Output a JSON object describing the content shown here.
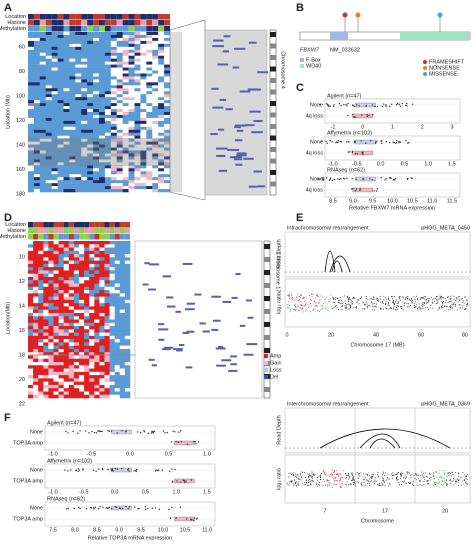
{
  "panels": {
    "a": {
      "letter": "A",
      "header_rows": [
        "Location",
        "Histone",
        "Methylation"
      ],
      "y_label": "Location (Mb)",
      "y_ticks": [
        "60",
        "80",
        "100",
        "120",
        "140",
        "160",
        "180"
      ],
      "chromosome": "Chromosome 4"
    },
    "b": {
      "letter": "B",
      "gene": "FBXW7",
      "transcript": "NM_033632",
      "domains": [
        "F-Box",
        "WD40"
      ],
      "mutation_types": [
        "FRAMESHIFT",
        "NONSENSE",
        "MISSENSE"
      ]
    },
    "c": {
      "letter": "C",
      "groups": [
        {
          "platform": "Agilent (n=47)",
          "rows": [
            "None",
            "4q loss"
          ],
          "ticks": [
            "-1",
            "0",
            "1",
            "2",
            "3"
          ]
        },
        {
          "platform": "Affymetrix (n=102)",
          "rows": [
            "None",
            "4q loss"
          ],
          "ticks": [
            "-1.0",
            "-0.5",
            "0.0",
            "0.5",
            "1.0",
            "1.5"
          ]
        },
        {
          "platform": "RNAseq (n=62)",
          "rows": [
            "None",
            "4q loss"
          ],
          "ticks": [
            "8.5",
            "9.0",
            "9.5",
            "10.0",
            "10.5",
            "11.0",
            "11.5"
          ]
        }
      ],
      "x_label": "Relative FBXW7 mRNA expression"
    },
    "d": {
      "letter": "D",
      "header_rows": [
        "Location",
        "Histone",
        "Methylation"
      ],
      "y_label": "Location(Mb)",
      "y_ticks": [
        "10",
        "12",
        "14",
        "16",
        "18",
        "20",
        "22"
      ],
      "chromosome": "Chromosome 17",
      "legend": [
        "Amp",
        "Gain",
        "Loss",
        "Del"
      ]
    },
    "e": {
      "letter": "E",
      "top": {
        "title": "Intrachromosomal rearrangement",
        "sample": "pHGG_META_0450",
        "y_labels": [
          "Read Depth",
          "log₂ ratio"
        ],
        "x_ticks": [
          "0",
          "20",
          "40",
          "60",
          "80"
        ],
        "x_label": "Chromosome 17 (MB)"
      },
      "bottom": {
        "title": "Interchromosomal rearrangement",
        "sample": "pHGG_META_0369",
        "y_labels": [
          "Read Depth",
          "log₂ ratio"
        ],
        "x_ticks": [
          "7",
          "17",
          "20"
        ],
        "x_label": "Chromosome"
      }
    },
    "f": {
      "letter": "F",
      "groups": [
        {
          "platform": "Agilent (n=47)",
          "rows": [
            "None",
            "TOP3A amp"
          ],
          "ticks": [
            "-1.0",
            "-0.5",
            "0.0",
            "0.5",
            "1.0"
          ]
        },
        {
          "platform": "Affymetrix (n=102)",
          "rows": [
            "None",
            "TOP3A amp"
          ],
          "ticks": [
            "-1.0",
            "-0.5",
            "0.0",
            "0.5",
            "1.0",
            "1.5"
          ]
        },
        {
          "platform": "RNAseq (n=62)",
          "rows": [
            "None",
            "TOP3A amp"
          ],
          "ticks": [
            "7.5",
            "8.0",
            "8.5",
            "9.0",
            "9.5",
            "10.0",
            "10.5",
            "11.0"
          ]
        }
      ],
      "x_label": "Relative TOP3A mRNA expression"
    }
  }
}
